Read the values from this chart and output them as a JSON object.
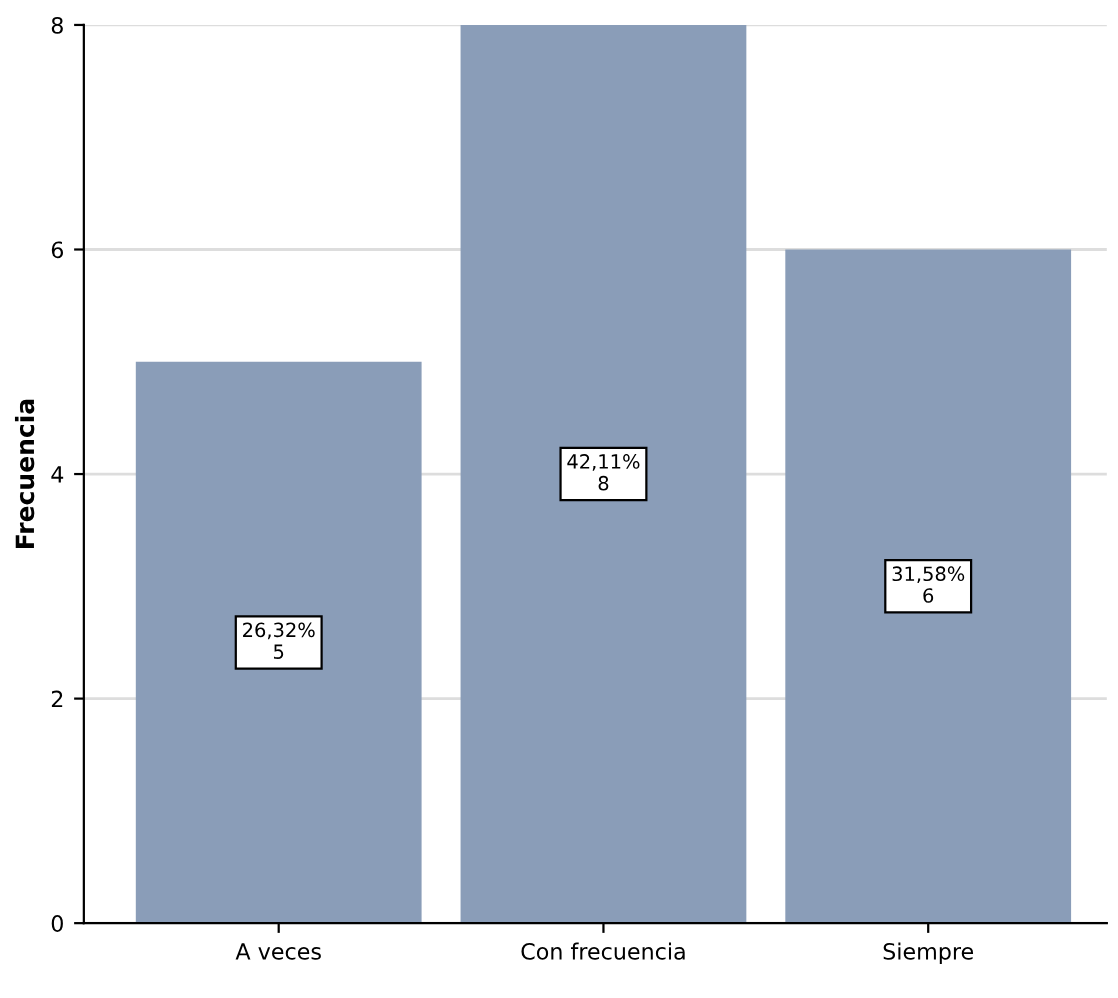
{
  "chart_data": {
    "type": "bar",
    "ylabel": "Frecuencia",
    "categories": [
      "A veces",
      "Con frecuencia",
      "Siempre"
    ],
    "values": [
      5,
      8,
      6
    ],
    "color": "#8a9db8",
    "value_labels": [
      "26,32%\n5",
      "42,11%\n8",
      "31,58%\n6"
    ],
    "ylim": [
      0,
      8
    ],
    "yticks": [
      0,
      2,
      4,
      6,
      8
    ],
    "grid": "y"
  }
}
